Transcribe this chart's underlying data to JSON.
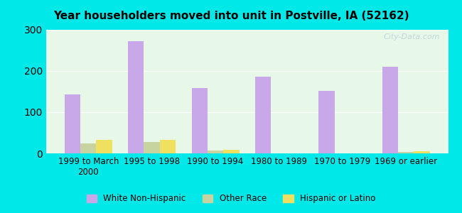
{
  "title": "Year householders moved into unit in Postville, IA (52162)",
  "categories": [
    "1999 to March\n2000",
    "1995 to 1998",
    "1990 to 1994",
    "1980 to 1989",
    "1970 to 1979",
    "1969 or earlier"
  ],
  "white_non_hispanic": [
    143,
    272,
    158,
    187,
    152,
    211
  ],
  "other_race": [
    25,
    27,
    7,
    0,
    0,
    4
  ],
  "hispanic_or_latino": [
    33,
    33,
    8,
    0,
    0,
    5
  ],
  "bar_width": 0.25,
  "colors": {
    "white_non_hispanic": "#c8a8e8",
    "other_race": "#c8d4a0",
    "hispanic_or_latino": "#f0e060"
  },
  "ylim": [
    0,
    300
  ],
  "yticks": [
    0,
    100,
    200,
    300
  ],
  "background_color": "#e8f8e8",
  "outer_background": "#00e8e8",
  "watermark": "City-Data.com",
  "legend_labels": [
    "White Non-Hispanic",
    "Other Race",
    "Hispanic or Latino"
  ]
}
